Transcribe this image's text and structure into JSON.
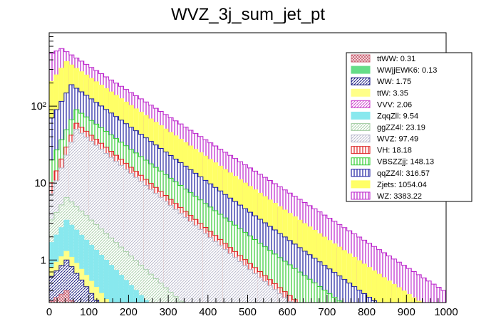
{
  "chart_data": {
    "type": "stacked-step-histogram",
    "title": "WVZ_3j_sum_jet_pt",
    "xlabel": "",
    "ylabel": "",
    "xlim": [
      0,
      1000
    ],
    "ylim": [
      0.28,
      900
    ],
    "log_y": true,
    "bin_width": 12.5,
    "n_bins": 80,
    "x_ticks": [
      0,
      100,
      200,
      300,
      400,
      500,
      600,
      700,
      800,
      900,
      1000
    ],
    "x_tick_labels": [
      "0",
      "100",
      "200",
      "300",
      "400",
      "500",
      "600",
      "700",
      "800",
      "900",
      "1000"
    ],
    "y_ticks": [
      1,
      10,
      100
    ],
    "y_tick_labels": [
      "1",
      "10",
      "10²"
    ],
    "legend_position": "top-right",
    "grid": false,
    "series": [
      {
        "name": "ttWW: 0.31",
        "integral": 0.31,
        "color": "#cc6677",
        "hatch": "cross"
      },
      {
        "name": "WWjjEWK6: 0.13",
        "integral": 0.13,
        "color": "#66dd88",
        "hatch": "none"
      },
      {
        "name": "WW: 1.75",
        "integral": 1.75,
        "color": "#1a1a80",
        "hatch": "diag"
      },
      {
        "name": "ttW: 3.35",
        "integral": 3.35,
        "color": "#ffff88",
        "hatch": "none"
      },
      {
        "name": "VVV: 2.06",
        "integral": 2.06,
        "color": "#cc44cc",
        "hatch": "diag"
      },
      {
        "name": "ZqqZll: 9.54",
        "integral": 9.54,
        "color": "#88e8ee",
        "hatch": "none"
      },
      {
        "name": "ggZZ4l: 23.19",
        "integral": 23.19,
        "color": "#aad0aa",
        "hatch": "diag"
      },
      {
        "name": "WVZ: 97.49",
        "integral": 97.49,
        "color": "#b8b8cc",
        "hatch": "diag"
      },
      {
        "name": "VH: 18.18",
        "integral": 18.18,
        "color": "#dd2222",
        "hatch": "vert"
      },
      {
        "name": "VBSZZjj: 148.13",
        "integral": 148.13,
        "color": "#33cc33",
        "hatch": "vert"
      },
      {
        "name": "qqZZ4l: 316.57",
        "integral": 316.57,
        "color": "#1a1aa0",
        "hatch": "vert"
      },
      {
        "name": "Zjets: 1054.04",
        "integral": 1054.04,
        "color": "#ffff66",
        "hatch": "none"
      },
      {
        "name": "WZ: 3383.22",
        "integral": 3383.22,
        "color": "#bb22cc",
        "hatch": "vert"
      }
    ],
    "stack_totals_by_bin": {
      "note_units": "events per bin",
      "ttWW": 0.35,
      "WW_top": 1.0,
      "ttW_top": 1.3,
      "ZqqZll_top": 3.3,
      "ggZZ4l_top": 6.5,
      "WVZ_top": 50,
      "VH_top": 60,
      "VBSZZjj_top": 90,
      "qqZZ4l_top": 190,
      "Zjets_top": 380,
      "WZ_top": 560
    }
  }
}
